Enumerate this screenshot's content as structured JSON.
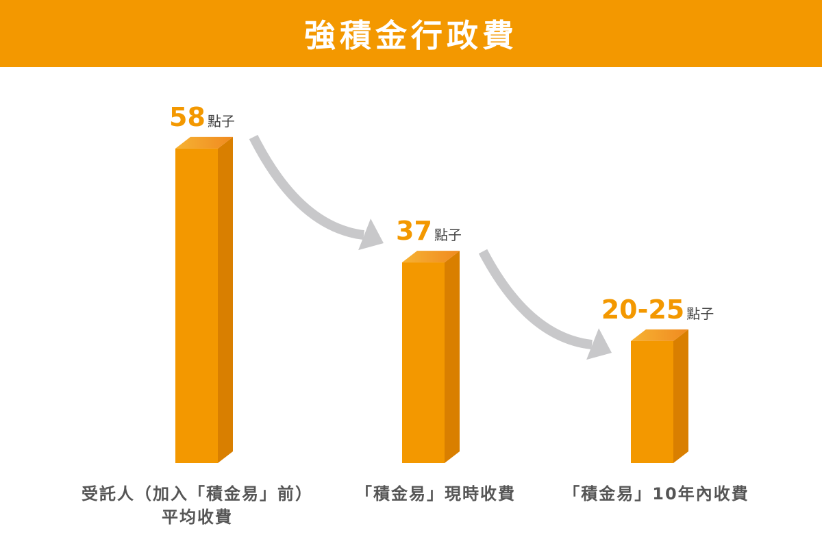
{
  "title": "強積金行政費",
  "chart_data": {
    "type": "bar",
    "categories": [
      "受託人（加入「積金易」前）平均收費",
      "「積金易」現時收費",
      "「積金易」10年內收費"
    ],
    "category_lines": [
      [
        "受託人（加入「積金易」前）",
        "平均收費"
      ],
      [
        "「積金易」現時收費"
      ],
      [
        "「積金易」10年內收費"
      ]
    ],
    "values": [
      58,
      37,
      22.5
    ],
    "value_labels": [
      "58",
      "37",
      "20-25"
    ],
    "unit": "點子",
    "range_note": "third value shown as range 20-25",
    "ylim": [
      0,
      60
    ],
    "grid": false,
    "legend": "none"
  },
  "colors": {
    "banner": "#f39800",
    "bar_front": "#f39800",
    "bar_side": "#d97f00",
    "bar_top": "#f6b233",
    "value_text": "#f39800",
    "unit_text": "#444444",
    "arrow": "#c8c8ca"
  }
}
